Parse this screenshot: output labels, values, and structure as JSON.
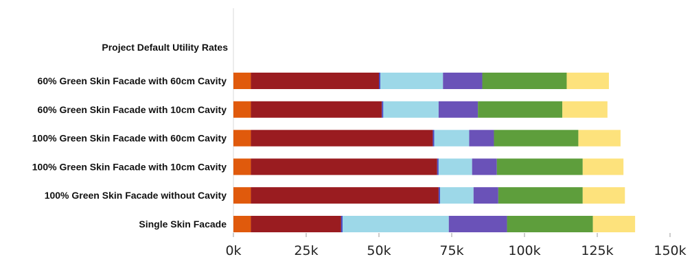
{
  "chart_data": {
    "type": "bar",
    "orientation": "horizontal",
    "stacked": true,
    "title": "",
    "xlabel": "",
    "ylabel": "",
    "header_label": "Project Default Utility Rates",
    "categories": [
      "60% Green Skin Facade with 60cm Cavity",
      "60% Green Skin Facade with 10cm Cavity",
      "100% Green Skin Facade with 60cm Cavity",
      "100% Green Skin Facade with 10cm Cavity",
      "100% Green Skin Facade without Cavity",
      "Single Skin Facade"
    ],
    "series": [
      {
        "color": "#e05a0c",
        "values": [
          6000,
          6000,
          6000,
          6000,
          6000,
          6000
        ]
      },
      {
        "color": "#9a1c20",
        "values": [
          44000,
          45000,
          62500,
          64000,
          64500,
          31000
        ]
      },
      {
        "color": "#4a4fc8",
        "values": [
          500,
          500,
          500,
          500,
          500,
          500
        ]
      },
      {
        "color": "#9dd8e8",
        "values": [
          21500,
          19000,
          12000,
          11500,
          11500,
          36500
        ]
      },
      {
        "color": "#6a52b8",
        "values": [
          13500,
          13500,
          8500,
          8500,
          8500,
          20000
        ]
      },
      {
        "color": "#5e9e3c",
        "values": [
          29000,
          29000,
          29000,
          29500,
          29000,
          29500
        ]
      },
      {
        "color": "#fde27c",
        "values": [
          14500,
          15500,
          14500,
          14000,
          14500,
          14500
        ]
      }
    ],
    "xlim": [
      0,
      150000
    ],
    "xticks": [
      0,
      25000,
      50000,
      75000,
      100000,
      125000,
      150000
    ],
    "xtick_labels": [
      "0k",
      "25k",
      "50k",
      "75k",
      "100k",
      "125k",
      "150k"
    ],
    "grid": false
  }
}
